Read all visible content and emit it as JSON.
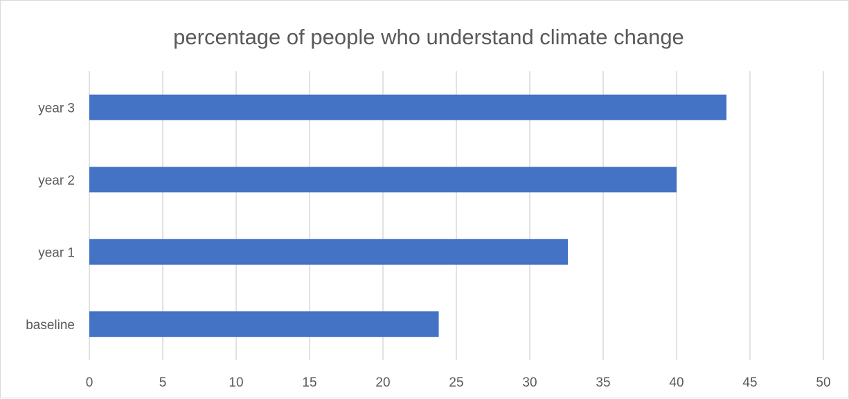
{
  "chart_data": {
    "type": "bar",
    "orientation": "horizontal",
    "title": "percentage of people who understand climate change",
    "xlabel": "",
    "ylabel": "",
    "categories": [
      "baseline",
      "year 1",
      "year 2",
      "year 3"
    ],
    "values": [
      23.8,
      32.6,
      40.0,
      43.4
    ],
    "xlim": [
      0,
      50
    ],
    "xticks": [
      0,
      5,
      10,
      15,
      20,
      25,
      30,
      35,
      40,
      45,
      50
    ],
    "grid": true,
    "legend": "none",
    "colors": {
      "bar": "#4472C4",
      "grid": "#d9d9d9",
      "text": "#595959"
    }
  }
}
